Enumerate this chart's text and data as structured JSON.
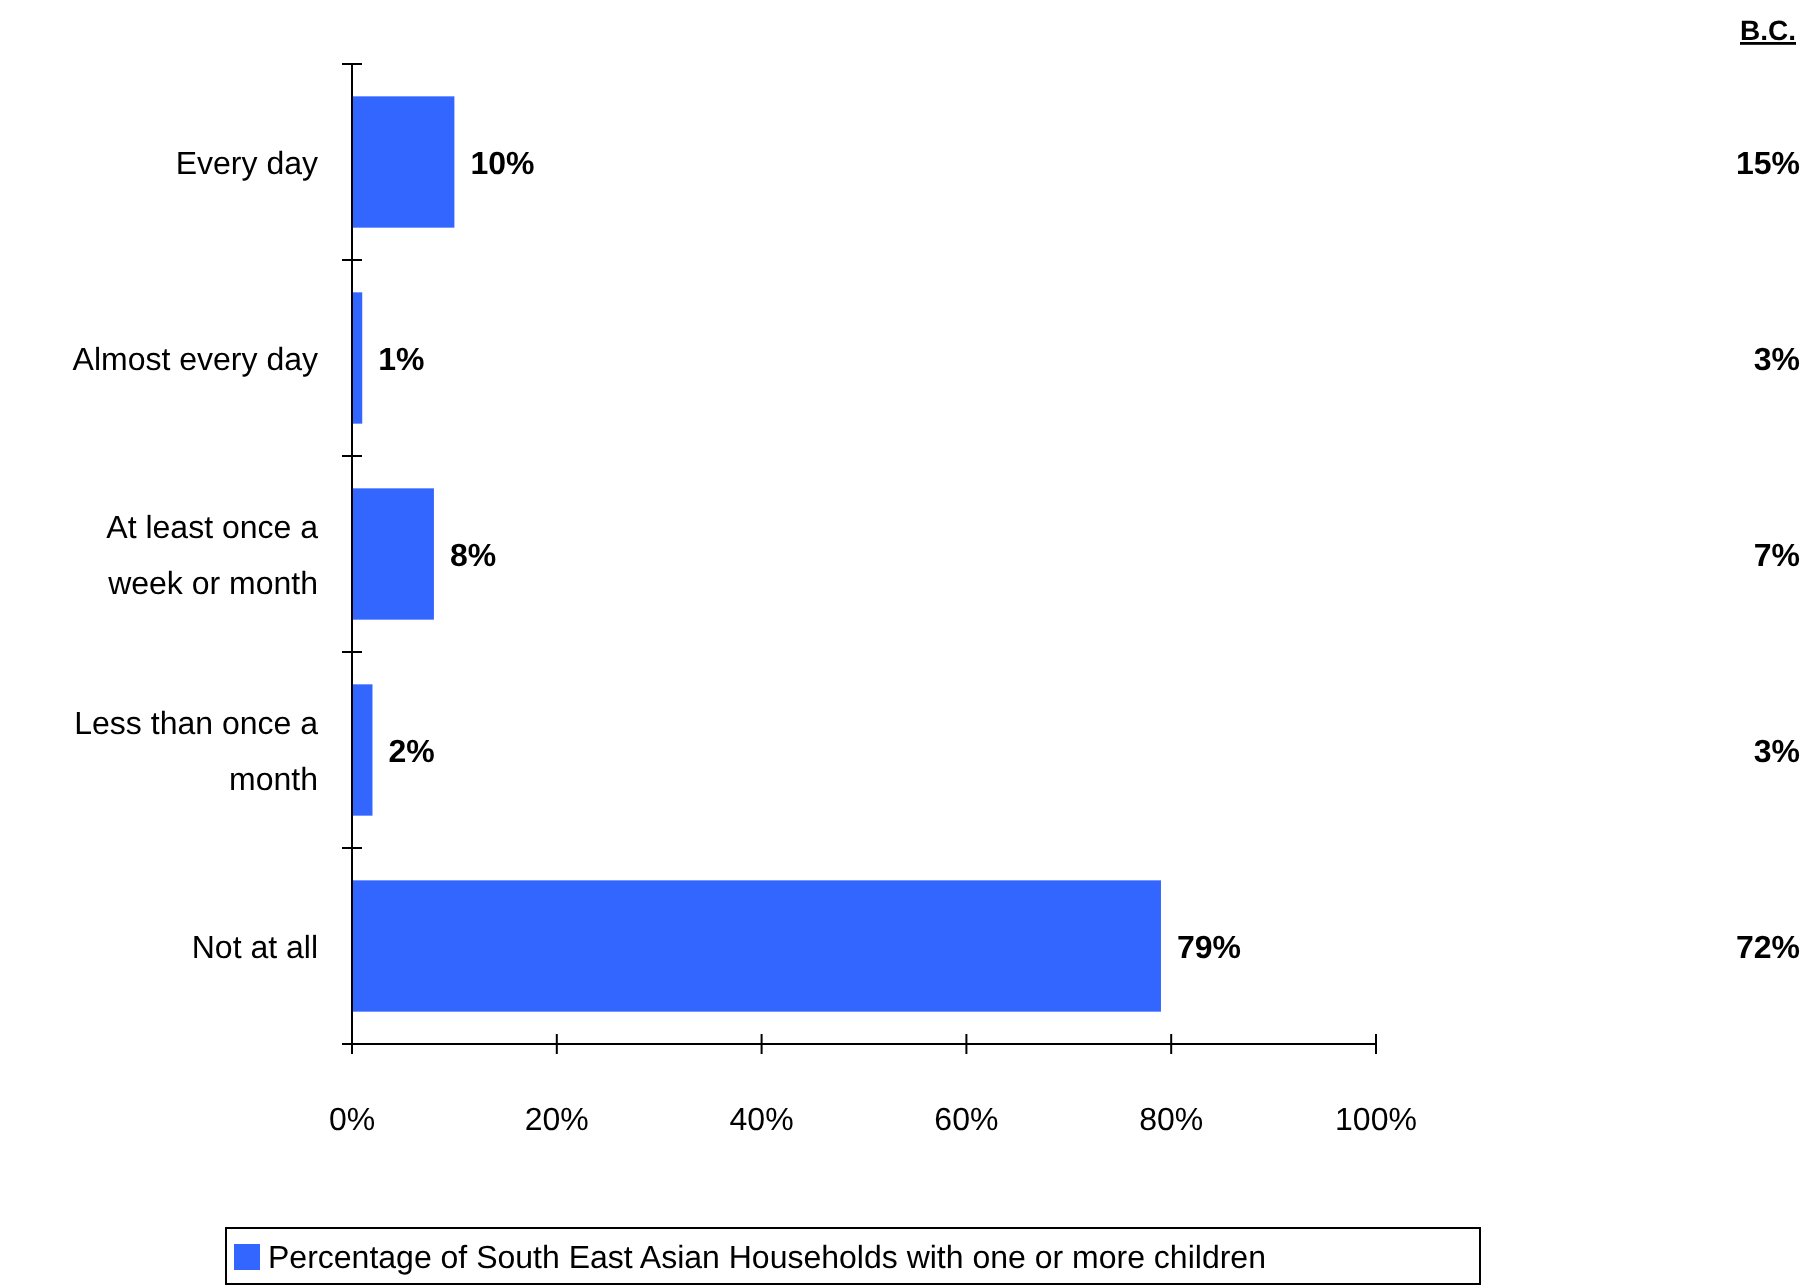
{
  "chart_data": {
    "type": "bar",
    "orientation": "horizontal",
    "categories": [
      "Every day",
      "Almost every day",
      "At least once a week or month",
      "Less than once a month",
      "Not at all"
    ],
    "series": [
      {
        "name": "Percentage of South East Asian Households with one or more children",
        "color": "#3366ff",
        "values": [
          10,
          1,
          8,
          2,
          79
        ],
        "value_labels": [
          "10%",
          "1%",
          "8%",
          "2%",
          "79%"
        ]
      }
    ],
    "xlim": [
      0,
      100
    ],
    "xticks": [
      {
        "value": 0,
        "label": "0%"
      },
      {
        "value": 20,
        "label": "20%"
      },
      {
        "value": 40,
        "label": "40%"
      },
      {
        "value": 60,
        "label": "60%"
      },
      {
        "value": 80,
        "label": "80%"
      },
      {
        "value": 100,
        "label": "100%"
      }
    ],
    "legend": "bottom",
    "grid": false,
    "annotations": [
      "B.C.",
      "15%",
      "3%",
      "7%",
      "3%",
      "72%"
    ]
  }
}
